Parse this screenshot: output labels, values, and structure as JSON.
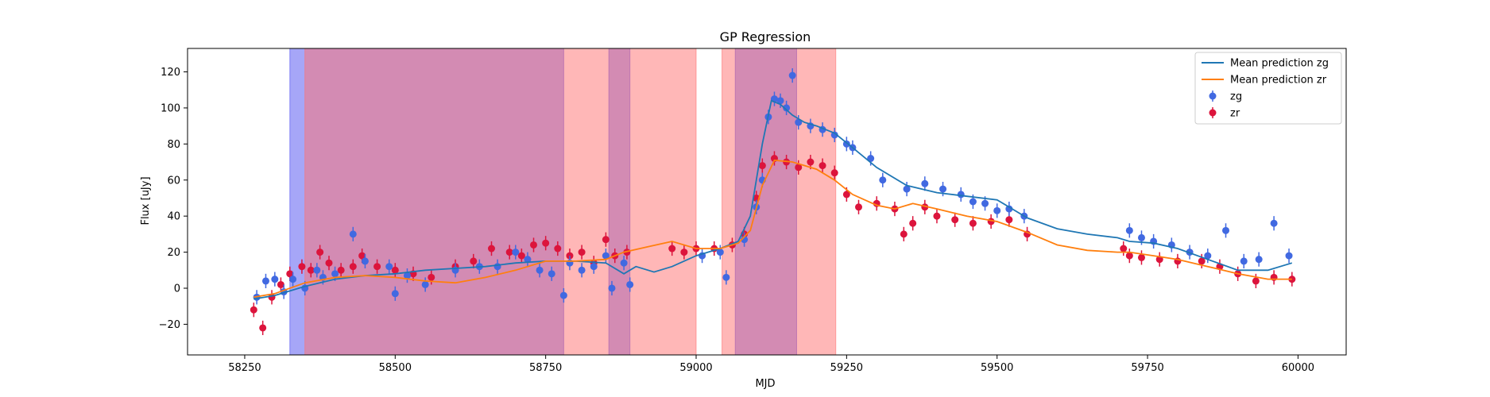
{
  "chart_data": {
    "type": "scatter",
    "title": "GP Regression",
    "xlabel": "MJD",
    "ylabel": "Flux [uJy]",
    "xlim": [
      58155,
      60080
    ],
    "ylim": [
      -37,
      133
    ],
    "xticks": [
      58250,
      58500,
      58750,
      59000,
      59250,
      59500,
      59750,
      60000
    ],
    "yticks": [
      -20,
      0,
      20,
      40,
      60,
      80,
      100,
      120
    ],
    "grid": false,
    "legend_position": "top-right",
    "colors": {
      "zg_points": "#4169e1",
      "zr_points": "#dc143c",
      "zg_line": "#1f77b4",
      "zr_line": "#ff7f0e",
      "band_zg": "#4d4df0",
      "band_zr": "#ff6f6f"
    },
    "shaded_regions": [
      {
        "band": "zg",
        "x0": 58325,
        "x1": 58780
      },
      {
        "band": "zg",
        "x0": 58855,
        "x1": 58890
      },
      {
        "band": "zg",
        "x0": 59065,
        "x1": 59167
      },
      {
        "band": "zr",
        "x0": 58350,
        "x1": 59000
      },
      {
        "band": "zr",
        "x0": 59043,
        "x1": 59232
      }
    ],
    "legend": [
      {
        "label": "Mean prediction zg",
        "kind": "line",
        "color": "#1f77b4"
      },
      {
        "label": "Mean prediction zr",
        "kind": "line",
        "color": "#ff7f0e"
      },
      {
        "label": "zg",
        "kind": "marker",
        "color": "#4169e1"
      },
      {
        "label": "zr",
        "kind": "marker",
        "color": "#dc143c"
      }
    ],
    "series": [
      {
        "name": "Mean prediction zg",
        "kind": "line",
        "x": [
          58265,
          58300,
          58350,
          58400,
          58450,
          58500,
          58550,
          58600,
          58650,
          58700,
          58750,
          58800,
          58850,
          58880,
          58900,
          58930,
          58960,
          59000,
          59040,
          59070,
          59090,
          59110,
          59125,
          59140,
          59160,
          59180,
          59200,
          59230,
          59260,
          59300,
          59350,
          59400,
          59450,
          59500,
          59550,
          59600,
          59650,
          59700,
          59720,
          59760,
          59800,
          59850,
          59900,
          59950,
          59990
        ],
        "y": [
          -6,
          -4,
          1,
          5,
          7,
          8,
          10,
          11,
          12,
          14,
          15,
          15,
          14,
          8,
          12,
          9,
          12,
          18,
          22,
          26,
          40,
          80,
          104,
          102,
          96,
          92,
          90,
          86,
          78,
          67,
          57,
          53,
          51,
          49,
          39,
          33,
          30,
          28,
          26,
          25,
          22,
          16,
          10,
          10,
          14
        ]
      },
      {
        "name": "Mean prediction zr",
        "kind": "line",
        "x": [
          58265,
          58300,
          58350,
          58400,
          58450,
          58500,
          58550,
          58600,
          58650,
          58700,
          58750,
          58800,
          58850,
          58880,
          58920,
          58960,
          59000,
          59040,
          59070,
          59090,
          59110,
          59130,
          59160,
          59200,
          59230,
          59260,
          59300,
          59330,
          59360,
          59400,
          59450,
          59500,
          59550,
          59600,
          59650,
          59700,
          59720,
          59760,
          59800,
          59850,
          59900,
          59950,
          59990
        ],
        "y": [
          -5,
          -3,
          3,
          6,
          7,
          6,
          4,
          3,
          6,
          10,
          15,
          15,
          16,
          20,
          23,
          26,
          22,
          22,
          25,
          32,
          57,
          71,
          70,
          66,
          60,
          52,
          46,
          44,
          47,
          44,
          40,
          37,
          31,
          24,
          21,
          20,
          20,
          18,
          16,
          12,
          8,
          5,
          5
        ]
      },
      {
        "name": "zg",
        "kind": "points",
        "x": [
          58270,
          58285,
          58300,
          58315,
          58330,
          58350,
          58370,
          58380,
          58400,
          58430,
          58450,
          58490,
          58500,
          58520,
          58550,
          58600,
          58640,
          58670,
          58700,
          58720,
          58740,
          58760,
          58780,
          58790,
          58810,
          58830,
          58850,
          58860,
          58880,
          58890,
          59010,
          59040,
          59050,
          59080,
          59100,
          59110,
          59120,
          59130,
          59140,
          59150,
          59160,
          59170,
          59190,
          59210,
          59230,
          59250,
          59260,
          59290,
          59310,
          59350,
          59380,
          59410,
          59440,
          59460,
          59480,
          59500,
          59520,
          59545,
          59720,
          59740,
          59760,
          59790,
          59820,
          59850,
          59880,
          59910,
          59935,
          59960,
          59985
        ],
        "y": [
          -5,
          4,
          5,
          -2,
          5,
          0,
          10,
          6,
          8,
          30,
          15,
          12,
          -3,
          7,
          2,
          10,
          12,
          12,
          20,
          16,
          10,
          8,
          -4,
          14,
          10,
          12,
          18,
          0,
          14,
          2,
          18,
          20,
          6,
          27,
          45,
          60,
          95,
          105,
          104,
          100,
          118,
          92,
          90,
          88,
          85,
          80,
          78,
          72,
          60,
          55,
          58,
          55,
          52,
          48,
          47,
          43,
          44,
          40,
          32,
          28,
          26,
          24,
          20,
          18,
          32,
          15,
          16,
          36,
          18
        ]
      },
      {
        "name": "zr",
        "kind": "points",
        "x": [
          58265,
          58280,
          58295,
          58310,
          58325,
          58345,
          58360,
          58375,
          58390,
          58410,
          58430,
          58445,
          58470,
          58500,
          58530,
          58560,
          58600,
          58630,
          58660,
          58690,
          58710,
          58730,
          58750,
          58770,
          58790,
          58810,
          58830,
          58850,
          58865,
          58885,
          58960,
          58980,
          59000,
          59030,
          59060,
          59080,
          59100,
          59110,
          59130,
          59150,
          59170,
          59190,
          59210,
          59230,
          59250,
          59270,
          59300,
          59330,
          59345,
          59360,
          59380,
          59400,
          59430,
          59460,
          59490,
          59520,
          59550,
          59710,
          59720,
          59740,
          59770,
          59800,
          59840,
          59870,
          59900,
          59930,
          59960,
          59990
        ],
        "y": [
          -12,
          -22,
          -5,
          2,
          8,
          12,
          10,
          20,
          14,
          10,
          12,
          18,
          12,
          10,
          8,
          6,
          12,
          15,
          22,
          20,
          18,
          24,
          25,
          22,
          18,
          20,
          14,
          27,
          18,
          20,
          22,
          20,
          22,
          22,
          24,
          30,
          50,
          68,
          72,
          70,
          67,
          70,
          68,
          64,
          52,
          45,
          47,
          44,
          30,
          36,
          45,
          40,
          38,
          36,
          37,
          38,
          30,
          22,
          18,
          17,
          16,
          15,
          15,
          12,
          8,
          4,
          6,
          5
        ]
      }
    ]
  }
}
